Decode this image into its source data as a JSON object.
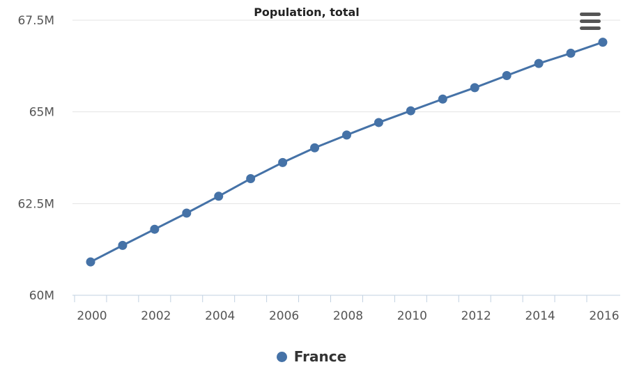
{
  "chart_data": {
    "type": "line",
    "title": "Population, total",
    "xlabel": "",
    "ylabel": "",
    "x": [
      2000,
      2001,
      2002,
      2003,
      2004,
      2005,
      2006,
      2007,
      2008,
      2009,
      2010,
      2011,
      2012,
      2013,
      2014,
      2015,
      2016
    ],
    "series": [
      {
        "name": "France",
        "color": "#4572a7",
        "values": [
          60.91,
          61.36,
          61.8,
          62.24,
          62.7,
          63.18,
          63.62,
          64.02,
          64.37,
          64.71,
          65.03,
          65.35,
          65.66,
          65.99,
          66.32,
          66.6,
          66.9
        ]
      }
    ],
    "xlim": [
      2000,
      2016
    ],
    "ylim": [
      60,
      67.5
    ],
    "y_ticks": [
      {
        "value": 60,
        "label": "60M"
      },
      {
        "value": 62.5,
        "label": "62.5M"
      },
      {
        "value": 65,
        "label": "65M"
      },
      {
        "value": 67.5,
        "label": "67.5M"
      }
    ],
    "x_ticks": [
      {
        "value": 2000,
        "label": "2000"
      },
      {
        "value": 2002,
        "label": "2002"
      },
      {
        "value": 2004,
        "label": "2004"
      },
      {
        "value": 2006,
        "label": "2006"
      },
      {
        "value": 2008,
        "label": "2008"
      },
      {
        "value": 2010,
        "label": "2010"
      },
      {
        "value": 2012,
        "label": "2012"
      },
      {
        "value": 2014,
        "label": "2014"
      },
      {
        "value": 2016,
        "label": "2016"
      }
    ],
    "grid": "horizontal",
    "legend_position": "bottom-center"
  },
  "legend": {
    "label": "France",
    "color": "#4572a7"
  },
  "menu": {
    "icon": "hamburger-menu-icon"
  }
}
